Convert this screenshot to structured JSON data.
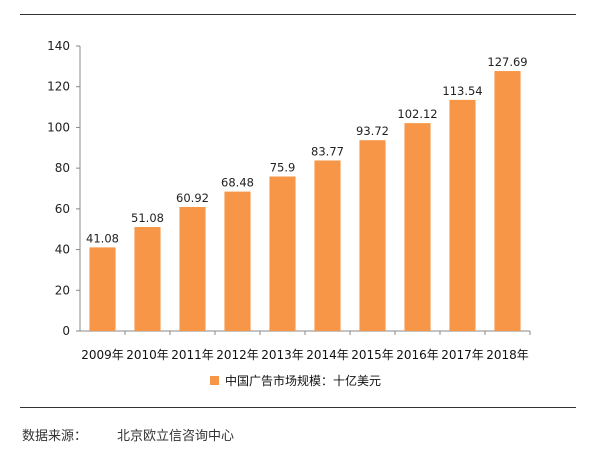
{
  "chart_data": {
    "type": "bar",
    "categories": [
      "2009年",
      "2010年",
      "2011年",
      "2012年",
      "2013年",
      "2014年",
      "2015年",
      "2016年",
      "2017年",
      "2018年"
    ],
    "series": [
      {
        "name": "中国广告市场规模：十亿美元",
        "values": [
          41.08,
          51.08,
          60.92,
          68.48,
          75.9,
          83.77,
          93.72,
          102.12,
          113.54,
          127.69
        ],
        "value_labels": [
          "41.08",
          "51.08",
          "60.92",
          "68.48",
          "75.9",
          "83.77",
          "93.72",
          "102.12",
          "113.54",
          "127.69"
        ]
      }
    ],
    "ylim": [
      0,
      140
    ],
    "yticks": [
      0,
      20,
      40,
      60,
      80,
      100,
      120,
      140
    ],
    "grid": false,
    "legend_position": "bottom",
    "bar_color": "#F79646"
  },
  "footer": {
    "source_label": "数据来源：",
    "source_value": "北京欧立信咨询中心"
  }
}
